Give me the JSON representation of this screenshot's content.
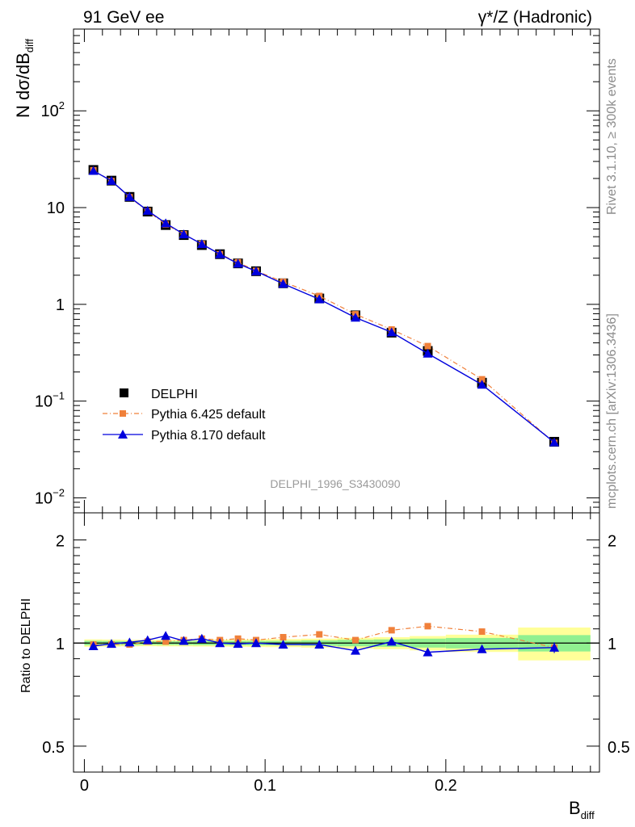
{
  "header": {
    "left_title": "91 GeV ee",
    "right_title": "γ*/Z (Hadronic)"
  },
  "side_labels": {
    "rivet": "Rivet 3.1.10, ≥ 300k events",
    "mcplots": "mcplots.cern.ch [arXiv:1306.3436]"
  },
  "analysis_id": "DELPHI_1996_S3430090",
  "colors": {
    "data": "#000000",
    "pythia6": "#f0803a",
    "pythia8": "#0000dd",
    "band_inner": "#90f090",
    "band_outer": "#ffff99"
  },
  "chart_data": [
    {
      "type": "line",
      "scale": "log",
      "ylabel_main": "N dσ/dB",
      "ylabel_sub": "diff",
      "ylim": [
        0.007,
        700
      ],
      "xlim": [
        -0.006,
        0.285
      ],
      "ytick_labels": [
        {
          "value": 0.01,
          "base": "10",
          "exp": "−2"
        },
        {
          "value": 0.1,
          "base": "10",
          "exp": "−1"
        },
        {
          "value": 1,
          "base": "1",
          "exp": ""
        },
        {
          "value": 10,
          "base": "10",
          "exp": ""
        },
        {
          "value": 100,
          "base": "10",
          "exp": "2"
        }
      ],
      "x": [
        0.005,
        0.015,
        0.025,
        0.035,
        0.045,
        0.055,
        0.065,
        0.075,
        0.085,
        0.095,
        0.11,
        0.13,
        0.15,
        0.17,
        0.19,
        0.22,
        0.26
      ],
      "series": [
        {
          "name": "DELPHI",
          "values": [
            24.5,
            19.0,
            12.9,
            9.1,
            6.6,
            5.2,
            4.1,
            3.3,
            2.65,
            2.2,
            1.65,
            1.15,
            0.77,
            0.51,
            0.33,
            0.155,
            0.038
          ]
        },
        {
          "name": "Pythia 6.425 default",
          "values": [
            24.3,
            18.8,
            12.8,
            9.2,
            6.7,
            5.3,
            4.2,
            3.3,
            2.72,
            2.22,
            1.71,
            1.22,
            0.79,
            0.55,
            0.37,
            0.168,
            0.037
          ]
        },
        {
          "name": "Pythia 8.170 default",
          "values": [
            24.0,
            18.9,
            12.9,
            9.3,
            6.9,
            5.3,
            4.2,
            3.3,
            2.64,
            2.2,
            1.63,
            1.13,
            0.73,
            0.515,
            0.31,
            0.148,
            0.0375
          ]
        }
      ],
      "legend": [
        "DELPHI",
        "Pythia 6.425 default",
        "Pythia 8.170 default"
      ],
      "legend_position": "bottom-left"
    },
    {
      "type": "line",
      "scale": "log",
      "ylabel": "Ratio to DELPHI",
      "xlabel_main": "B",
      "xlabel_sub": "diff",
      "ylim": [
        0.42,
        2.4
      ],
      "xlim": [
        -0.006,
        0.285
      ],
      "ytick_labels": [
        {
          "value": 0.5,
          "text": "0.5"
        },
        {
          "value": 1,
          "text": "1"
        },
        {
          "value": 2,
          "text": "2"
        }
      ],
      "xtick_labels": [
        {
          "value": 0,
          "text": "0"
        },
        {
          "value": 0.1,
          "text": "0.1"
        },
        {
          "value": 0.2,
          "text": "0.2"
        }
      ],
      "x": [
        0.005,
        0.015,
        0.025,
        0.035,
        0.045,
        0.055,
        0.065,
        0.075,
        0.085,
        0.095,
        0.11,
        0.13,
        0.15,
        0.17,
        0.19,
        0.22,
        0.26
      ],
      "bin_edges": [
        0,
        0.01,
        0.02,
        0.03,
        0.04,
        0.05,
        0.06,
        0.07,
        0.08,
        0.09,
        0.1,
        0.12,
        0.14,
        0.16,
        0.18,
        0.2,
        0.24,
        0.28
      ],
      "band_inner": [
        0.015,
        0.014,
        0.013,
        0.012,
        0.013,
        0.013,
        0.014,
        0.014,
        0.015,
        0.015,
        0.015,
        0.018,
        0.022,
        0.025,
        0.03,
        0.035,
        0.055
      ],
      "band_outer": [
        0.025,
        0.024,
        0.022,
        0.021,
        0.022,
        0.022,
        0.023,
        0.024,
        0.025,
        0.026,
        0.027,
        0.03,
        0.036,
        0.04,
        0.048,
        0.058,
        0.11
      ],
      "series": [
        {
          "name": "Pythia 6.425 default",
          "values": [
            0.99,
            0.99,
            0.99,
            1.01,
            1.01,
            1.02,
            1.03,
            1.02,
            1.03,
            1.02,
            1.04,
            1.06,
            1.02,
            1.09,
            1.12,
            1.08,
            0.97
          ]
        },
        {
          "name": "Pythia 8.170 default",
          "values": [
            0.98,
            0.995,
            1.005,
            1.02,
            1.05,
            1.015,
            1.03,
            1.0,
            0.995,
            1.0,
            0.99,
            0.99,
            0.95,
            1.01,
            0.94,
            0.96,
            0.97
          ]
        }
      ],
      "p8_last_error": 0.035
    }
  ]
}
